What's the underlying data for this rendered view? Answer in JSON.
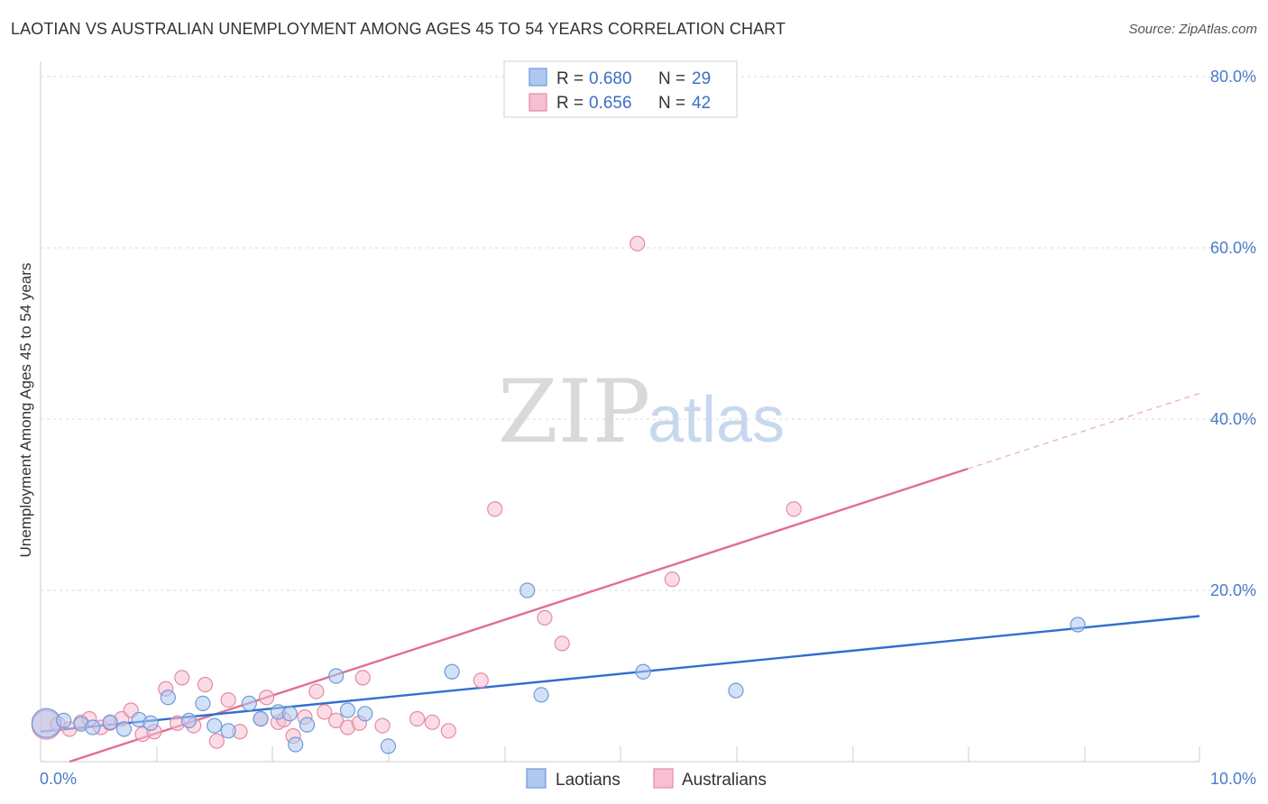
{
  "title": "LAOTIAN VS AUSTRALIAN UNEMPLOYMENT AMONG AGES 45 TO 54 YEARS CORRELATION CHART",
  "source": "Source: ZipAtlas.com",
  "watermark": {
    "zip": "ZIP",
    "atlas": "atlas"
  },
  "colors": {
    "laotian_fill": "#aec8f0",
    "laotian_stroke": "#6f9ad8",
    "laotian_line": "#2f6fcf",
    "australian_fill": "#f7bfd0",
    "australian_stroke": "#e48aa8",
    "australian_line": "#e06e97",
    "grid": "#d8d8d8",
    "tick_text": "#4a7bc8"
  },
  "legend": {
    "rows": [
      {
        "r_label": "R =",
        "r_value": "0.680",
        "n_label": "N =",
        "n_value": "29"
      },
      {
        "r_label": "R =",
        "r_value": "0.656",
        "n_label": "N =",
        "n_value": "42"
      }
    ]
  },
  "chart_data": {
    "type": "scatter",
    "title": "LAOTIAN VS AUSTRALIAN UNEMPLOYMENT AMONG AGES 45 TO 54 YEARS CORRELATION CHART",
    "xlabel": "",
    "ylabel": "Unemployment Among Ages 45 to 54 years",
    "xlim": [
      0,
      10
    ],
    "ylim": [
      0,
      80
    ],
    "x_tick_labels": [
      "0.0%",
      "10.0%"
    ],
    "x_ticks": [
      0,
      10
    ],
    "y_tick_labels": [
      "20.0%",
      "40.0%",
      "60.0%",
      "80.0%"
    ],
    "y_ticks": [
      20,
      40,
      60,
      80
    ],
    "legend_position": "top-center",
    "series": [
      {
        "name": "Laotians",
        "r": 0.68,
        "n": 29,
        "trend": {
          "x": [
            0,
            10
          ],
          "y": [
            3.5,
            17.0
          ]
        },
        "points": [
          {
            "x": 0.05,
            "y": 4.5,
            "big": true
          },
          {
            "x": 0.2,
            "y": 4.8
          },
          {
            "x": 0.35,
            "y": 4.4
          },
          {
            "x": 0.45,
            "y": 4.0
          },
          {
            "x": 0.6,
            "y": 4.6
          },
          {
            "x": 0.72,
            "y": 3.8
          },
          {
            "x": 0.85,
            "y": 4.9
          },
          {
            "x": 0.95,
            "y": 4.5
          },
          {
            "x": 1.1,
            "y": 7.5
          },
          {
            "x": 1.28,
            "y": 4.8
          },
          {
            "x": 1.4,
            "y": 6.8
          },
          {
            "x": 1.5,
            "y": 4.2
          },
          {
            "x": 1.62,
            "y": 3.6
          },
          {
            "x": 1.8,
            "y": 6.8
          },
          {
            "x": 1.9,
            "y": 5.0
          },
          {
            "x": 2.05,
            "y": 5.8
          },
          {
            "x": 2.2,
            "y": 2.0
          },
          {
            "x": 2.3,
            "y": 4.3
          },
          {
            "x": 2.55,
            "y": 10.0
          },
          {
            "x": 2.65,
            "y": 6.0
          },
          {
            "x": 2.8,
            "y": 5.6
          },
          {
            "x": 3.0,
            "y": 1.8
          },
          {
            "x": 3.55,
            "y": 10.5
          },
          {
            "x": 4.2,
            "y": 20.0
          },
          {
            "x": 4.32,
            "y": 7.8
          },
          {
            "x": 5.2,
            "y": 10.5
          },
          {
            "x": 6.0,
            "y": 8.3
          },
          {
            "x": 8.95,
            "y": 16.0
          },
          {
            "x": 2.15,
            "y": 5.6
          }
        ]
      },
      {
        "name": "Australians",
        "r": 0.656,
        "n": 42,
        "trend": {
          "x": [
            0.25,
            8.0
          ],
          "y": [
            0.0,
            34.2
          ]
        },
        "trend_dashed": {
          "x": [
            8.0,
            10.0
          ],
          "y": [
            34.2,
            43.0
          ]
        },
        "points": [
          {
            "x": 0.05,
            "y": 4.3,
            "big": true
          },
          {
            "x": 0.15,
            "y": 4.4
          },
          {
            "x": 0.25,
            "y": 3.8
          },
          {
            "x": 0.35,
            "y": 4.6
          },
          {
            "x": 0.42,
            "y": 5.0
          },
          {
            "x": 0.52,
            "y": 4.0
          },
          {
            "x": 0.6,
            "y": 4.5
          },
          {
            "x": 0.7,
            "y": 5.0
          },
          {
            "x": 0.78,
            "y": 6.0
          },
          {
            "x": 0.88,
            "y": 3.2
          },
          {
            "x": 0.98,
            "y": 3.5
          },
          {
            "x": 1.08,
            "y": 8.5
          },
          {
            "x": 1.18,
            "y": 4.5
          },
          {
            "x": 1.22,
            "y": 9.8
          },
          {
            "x": 1.32,
            "y": 4.2
          },
          {
            "x": 1.42,
            "y": 9.0
          },
          {
            "x": 1.52,
            "y": 2.4
          },
          {
            "x": 1.62,
            "y": 7.2
          },
          {
            "x": 1.72,
            "y": 3.5
          },
          {
            "x": 1.9,
            "y": 5.0
          },
          {
            "x": 1.95,
            "y": 7.5
          },
          {
            "x": 2.05,
            "y": 4.6
          },
          {
            "x": 2.18,
            "y": 3.0
          },
          {
            "x": 2.28,
            "y": 5.2
          },
          {
            "x": 2.38,
            "y": 8.2
          },
          {
            "x": 2.45,
            "y": 5.8
          },
          {
            "x": 2.55,
            "y": 4.8
          },
          {
            "x": 2.65,
            "y": 4.0
          },
          {
            "x": 2.75,
            "y": 4.5
          },
          {
            "x": 2.78,
            "y": 9.8
          },
          {
            "x": 2.95,
            "y": 4.2
          },
          {
            "x": 3.25,
            "y": 5.0
          },
          {
            "x": 3.38,
            "y": 4.6
          },
          {
            "x": 3.52,
            "y": 3.6
          },
          {
            "x": 3.8,
            "y": 9.5
          },
          {
            "x": 3.92,
            "y": 29.5
          },
          {
            "x": 4.35,
            "y": 16.8
          },
          {
            "x": 4.5,
            "y": 13.8
          },
          {
            "x": 5.15,
            "y": 60.5
          },
          {
            "x": 5.45,
            "y": 21.3
          },
          {
            "x": 6.5,
            "y": 29.5
          },
          {
            "x": 2.1,
            "y": 4.9
          }
        ]
      }
    ]
  }
}
